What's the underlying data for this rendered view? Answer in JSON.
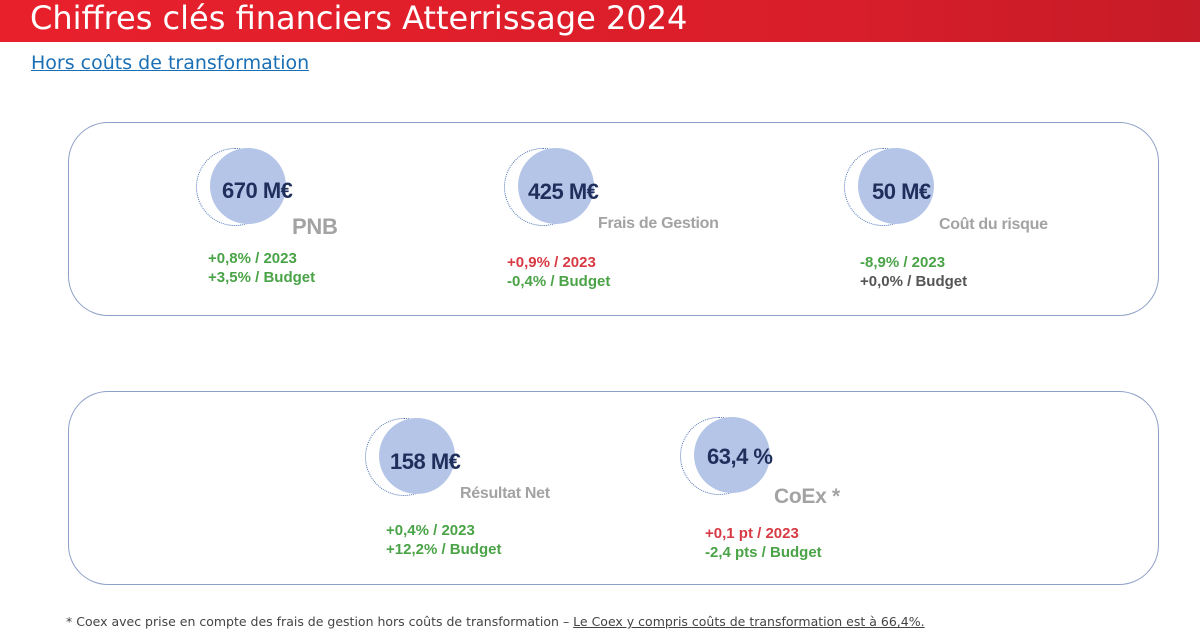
{
  "header": {
    "title": "Chiffres clés financiers Atterrissage 2024",
    "subtitle": "Hors coûts de transformation"
  },
  "colors": {
    "title_bar": "#e8202c",
    "link_blue": "#1a6fb5",
    "positive": "#4aa347",
    "negative": "#d83a44",
    "neutral": "#555555",
    "value": "#1f2f5c",
    "circle": "#b4c5e8"
  },
  "kpis": {
    "pnb": {
      "value": "670 M€",
      "label": "PNB",
      "line1": "+0,8% / 2023",
      "line2": "+3,5% / Budget"
    },
    "frais": {
      "value": "425 M€",
      "label": "Frais de Gestion",
      "line1": "+0,9% / 2023",
      "line2": "-0,4% / Budget"
    },
    "risque": {
      "value": "50 M€",
      "label": "Coût du risque",
      "line1": "-8,9% / 2023",
      "line2": "+0,0% / Budget"
    },
    "resultat": {
      "value": "158 M€",
      "label": "Résultat Net",
      "line1": "+0,4% / 2023",
      "line2": "+12,2% / Budget"
    },
    "coex": {
      "value": "63,4 %",
      "label": "CoEx *",
      "line1": "+0,1 pt / 2023",
      "line2": "-2,4 pts / Budget"
    }
  },
  "footnote": {
    "text": "* Coex avec prise en compte des frais de gestion hors coûts de transformation – ",
    "underlined": "Le Coex y compris coûts de transformation est à 66,4%."
  }
}
